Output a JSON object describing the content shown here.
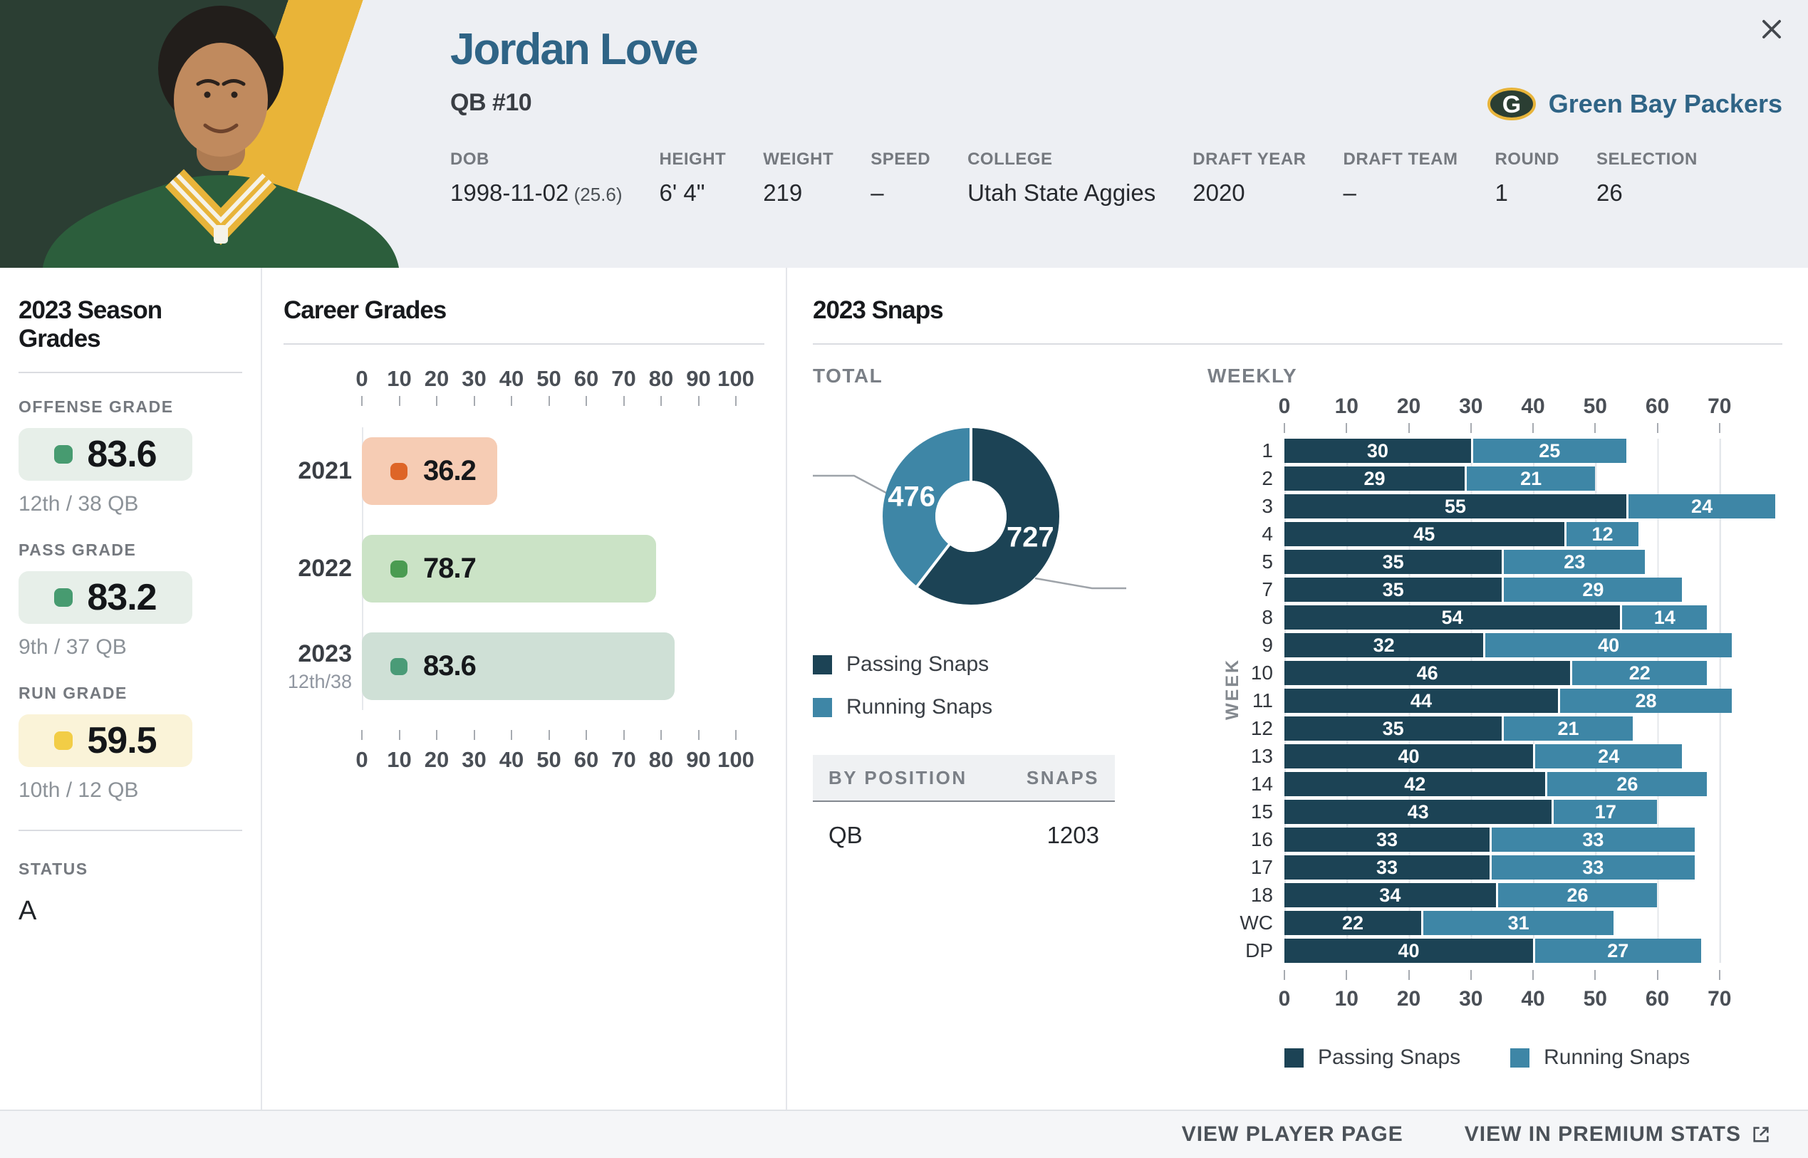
{
  "header": {
    "player_name": "Jordan Love",
    "position_number": "QB #10",
    "team_name": "Green Bay Packers",
    "info": [
      {
        "label": "DOB",
        "value": "1998-11-02",
        "suffix": "(25.6)"
      },
      {
        "label": "HEIGHT",
        "value": "6' 4\""
      },
      {
        "label": "WEIGHT",
        "value": "219"
      },
      {
        "label": "SPEED",
        "value": "–"
      },
      {
        "label": "COLLEGE",
        "value": "Utah State Aggies"
      },
      {
        "label": "DRAFT YEAR",
        "value": "2020"
      },
      {
        "label": "DRAFT TEAM",
        "value": "–"
      },
      {
        "label": "ROUND",
        "value": "1"
      },
      {
        "label": "SELECTION",
        "value": "26"
      }
    ]
  },
  "season_grades": {
    "title": "2023 Season Grades",
    "cards": [
      {
        "label": "OFFENSE GRADE",
        "value": "83.6",
        "rank": "12th / 38 QB",
        "bg": "#E7EFE9",
        "dot": "#479B70"
      },
      {
        "label": "PASS GRADE",
        "value": "83.2",
        "rank": "9th / 37 QB",
        "bg": "#E7EFE9",
        "dot": "#479B70"
      },
      {
        "label": "RUN GRADE",
        "value": "59.5",
        "rank": "10th / 12 QB",
        "bg": "#FAF3D8",
        "dot": "#F2CD46"
      }
    ],
    "status_label": "STATUS",
    "status_value": "A"
  },
  "career_grades": {
    "title": "Career Grades",
    "type": "bar",
    "axis_ticks": [
      0,
      10,
      20,
      30,
      40,
      50,
      60,
      70,
      80,
      90,
      100
    ],
    "axis_max": 100,
    "rows": [
      {
        "year": "2021",
        "sub": "",
        "value": 36.2,
        "bar": "#F6CCB4",
        "dot": "#DE6527"
      },
      {
        "year": "2022",
        "sub": "",
        "value": 78.7,
        "bar": "#CBE3C6",
        "dot": "#4A9B51"
      },
      {
        "year": "2023",
        "sub": "12th/38",
        "value": 83.6,
        "bar": "#CFE0D6",
        "dot": "#4A9B77"
      }
    ]
  },
  "snaps": {
    "title": "2023 Snaps",
    "total_label": "TOTAL",
    "weekly_label": "WEEKLY",
    "week_axis_label": "WEEK",
    "series": [
      {
        "name": "Passing Snaps",
        "color": "#1C4355"
      },
      {
        "name": "Running Snaps",
        "color": "#3E86A6"
      }
    ],
    "total": {
      "passing": 727,
      "running": 476
    },
    "by_position": {
      "header": [
        "BY POSITION",
        "SNAPS"
      ],
      "rows": [
        [
          "QB",
          "1203"
        ]
      ]
    },
    "weekly": {
      "type": "stacked-bar",
      "axis_ticks": [
        0,
        10,
        20,
        30,
        40,
        50,
        60,
        70
      ],
      "axis_max": 80,
      "rows": [
        {
          "week": "1",
          "passing": 30,
          "running": 25
        },
        {
          "week": "2",
          "passing": 29,
          "running": 21
        },
        {
          "week": "3",
          "passing": 55,
          "running": 24
        },
        {
          "week": "4",
          "passing": 45,
          "running": 12
        },
        {
          "week": "5",
          "passing": 35,
          "running": 23
        },
        {
          "week": "7",
          "passing": 35,
          "running": 29
        },
        {
          "week": "8",
          "passing": 54,
          "running": 14
        },
        {
          "week": "9",
          "passing": 32,
          "running": 40
        },
        {
          "week": "10",
          "passing": 46,
          "running": 22
        },
        {
          "week": "11",
          "passing": 44,
          "running": 28
        },
        {
          "week": "12",
          "passing": 35,
          "running": 21
        },
        {
          "week": "13",
          "passing": 40,
          "running": 24
        },
        {
          "week": "14",
          "passing": 42,
          "running": 26
        },
        {
          "week": "15",
          "passing": 43,
          "running": 17
        },
        {
          "week": "16",
          "passing": 33,
          "running": 33
        },
        {
          "week": "17",
          "passing": 33,
          "running": 33
        },
        {
          "week": "18",
          "passing": 34,
          "running": 26
        },
        {
          "week": "WC",
          "passing": 22,
          "running": 31
        },
        {
          "week": "DP",
          "passing": 40,
          "running": 27
        }
      ]
    }
  },
  "footer": {
    "view_player_page": "VIEW PLAYER PAGE",
    "view_premium_stats": "VIEW IN PREMIUM STATS"
  }
}
